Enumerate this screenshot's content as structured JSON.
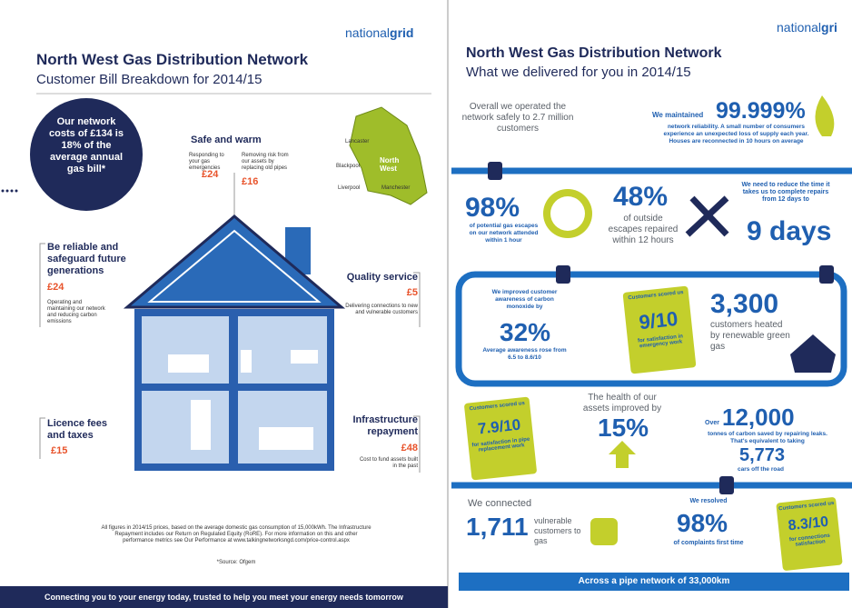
{
  "left": {
    "brand_light": "national",
    "brand_bold": "grid",
    "title": "North West Gas Distribution Network",
    "subtitle": "Customer Bill Breakdown for 2014/15",
    "circle_text": "Our network costs of £134 is 18% of the average annual gas bill*",
    "safe": {
      "heading": "Safe and warm",
      "items": [
        {
          "desc": "Responding to your gas emergencies",
          "amount": "£24"
        },
        {
          "desc": "Removing risk from our assets by replacing old pipes",
          "amount": "£16"
        }
      ]
    },
    "map_labels": [
      "Lancaster",
      "Blackpool",
      "North West",
      "Liverpool",
      "Manchester"
    ],
    "reliable": {
      "heading": "Be reliable and safeguard future generations",
      "amount": "£24",
      "desc": "Operating and maintaining our network and reducing carbon emissions"
    },
    "quality": {
      "heading": "Quality service",
      "amount": "£5",
      "desc": "Delivering connections to new and vulnerable customers"
    },
    "licence": {
      "heading": "Licence fees and taxes",
      "amount": "£15"
    },
    "infra": {
      "heading": "Infrastructure repayment",
      "amount": "£48",
      "desc": "Cost to fund assets built in the past"
    },
    "footnote": "All figures in 2014/15 prices, based on the average domestic gas consumption of 15,000kWh. The Infrastructure Repayment includes our Return on Regulated Equity (RoRE). For more information on this and other performance metrics see Our Performance at www.talkingnetworksngd.com/price-control.aspx",
    "source": "*Source: Ofgem",
    "footer": "Connecting you to your energy today, trusted to help you meet your energy needs tomorrow"
  },
  "right": {
    "brand_light": "national",
    "brand_bold": "gri",
    "title": "North West Gas Distribution Network",
    "subtitle": "What we delivered for you in 2014/15",
    "safety": "Overall we operated the network safely to 2.7 million customers",
    "reliability": {
      "lead": "We maintained",
      "value": "99.999%",
      "desc": "network reliability. A small number of consumers experience an unexpected loss of supply each year. Houses are reconnected in 10 hours on average"
    },
    "attended": {
      "value": "98%",
      "desc": "of potential gas escapes on our network attended within 1 hour"
    },
    "repaired": {
      "value": "48%",
      "desc": "of outside escapes repaired within 12 hours"
    },
    "repairs": {
      "desc": "We need to reduce the time it takes us to complete repairs from 12 days to",
      "value": "9 days"
    },
    "awareness": {
      "lead": "We improved customer awareness of carbon monoxide by",
      "value": "32%",
      "desc": "Average awareness rose from 6.5 to 8.6/10"
    },
    "emergency": {
      "lead": "Customers scored us",
      "value": "9/10",
      "desc": "for satisfaction in emergency work"
    },
    "green_gas": {
      "value": "3,300",
      "desc": "customers heated by renewable green gas"
    },
    "replacement": {
      "lead": "Customers scored us",
      "value": "7.9/10",
      "desc": "for satisfaction in pipe replacement work"
    },
    "health": {
      "lead": "The health of our assets improved by",
      "value": "15%"
    },
    "carbon": {
      "over": "Over",
      "value": "12,000",
      "desc": "tonnes of carbon saved by repairing leaks. That's equivalent to taking",
      "cars": "5,773",
      "cars_desc": "cars off the road"
    },
    "connected": {
      "lead": "We connected",
      "value": "1,711",
      "desc": "vulnerable customers to gas"
    },
    "complaints": {
      "lead": "We resolved",
      "value": "98%",
      "desc": "of complaints first time"
    },
    "connections": {
      "lead": "Customers scored us",
      "value": "8.3/10",
      "desc": "for connections satisfaction"
    },
    "network": "Across a pipe network of 33,000km"
  }
}
